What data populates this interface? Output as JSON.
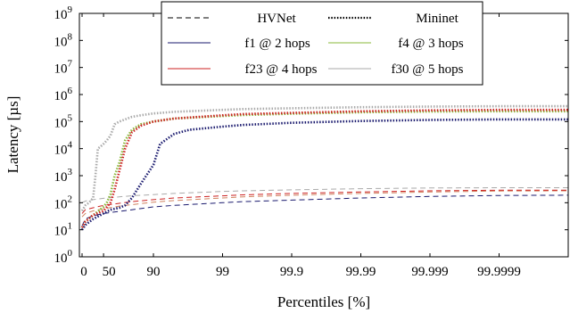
{
  "chart_data": {
    "type": "line",
    "xlabel": "Percentiles [%]",
    "ylabel": "Latency [µs]",
    "x_scale": "log-tail",
    "y_scale": "log",
    "xlim": [
      0,
      99.99999
    ],
    "ylim_exponents": [
      0,
      9
    ],
    "x_ticks": [
      {
        "value": 0,
        "label": "0"
      },
      {
        "value": 50,
        "label": "50"
      },
      {
        "value": 90,
        "label": "90"
      },
      {
        "value": 99,
        "label": "99"
      },
      {
        "value": 99.9,
        "label": "99.9"
      },
      {
        "value": 99.99,
        "label": "99.99"
      },
      {
        "value": 99.999,
        "label": "99.999"
      },
      {
        "value": 99.9999,
        "label": "99.9999"
      }
    ],
    "y_tick_base": "10",
    "y_tick_exponents": [
      "0",
      "1",
      "2",
      "3",
      "4",
      "5",
      "6",
      "7",
      "8",
      "9"
    ],
    "grid": false,
    "legend": {
      "placement": "top-right",
      "style_entries": [
        {
          "label": "HVNet",
          "dash": "dashed"
        },
        {
          "label": "Mininet",
          "dash": "dotted"
        }
      ]
    },
    "series": [
      {
        "name": "f1 @ 2 hops",
        "color": "#1a1a6e",
        "hvnet_color": "#1a1a6e",
        "hvnet": {
          "x": [
            0,
            10,
            30,
            50,
            70,
            80,
            90,
            95,
            99,
            99.5,
            99.9,
            99.99,
            99.999,
            99.9999,
            99.99999
          ],
          "y": [
            14,
            25,
            33,
            40,
            48,
            55,
            70,
            80,
            100,
            110,
            125,
            150,
            170,
            185,
            190
          ]
        },
        "mininet": {
          "x": [
            0,
            10,
            30,
            50,
            60,
            70,
            75,
            80,
            85,
            90,
            92,
            95,
            97,
            99,
            99.5,
            99.9,
            99.99,
            99.999,
            99.9999,
            99.99999
          ],
          "y": [
            10,
            15,
            25,
            40,
            55,
            65,
            80,
            150,
            500,
            2500,
            15000,
            35000,
            50000,
            65000,
            75000,
            90000,
            105000,
            115000,
            120000,
            120000
          ]
        }
      },
      {
        "name": "f4 @ 3 hops",
        "color": "#8ab83a",
        "hvnet_color": "#d0825e",
        "hvnet": {
          "x": [
            0,
            10,
            30,
            50,
            70,
            80,
            90,
            95,
            99,
            99.5,
            99.9,
            99.99,
            99.999,
            99.9999,
            99.99999
          ],
          "y": [
            30,
            40,
            50,
            60,
            75,
            85,
            105,
            120,
            150,
            165,
            190,
            220,
            250,
            270,
            275
          ]
        },
        "mininet": {
          "x": [
            0,
            10,
            30,
            50,
            55,
            60,
            65,
            70,
            75,
            80,
            85,
            90,
            95,
            99,
            99.5,
            99.9,
            99.99,
            99.999,
            99.9999,
            99.99999
          ],
          "y": [
            12,
            20,
            35,
            70,
            100,
            200,
            1000,
            3000,
            20000,
            50000,
            80000,
            100000,
            130000,
            160000,
            175000,
            195000,
            220000,
            235000,
            240000,
            240000
          ]
        }
      },
      {
        "name": "f23 @ 4 hops",
        "color": "#cc2222",
        "hvnet_color": "#cc2222",
        "hvnet": {
          "x": [
            0,
            10,
            30,
            50,
            70,
            80,
            90,
            95,
            99,
            99.5,
            99.9,
            99.99,
            99.999,
            99.9999,
            99.99999
          ],
          "y": [
            40,
            55,
            65,
            80,
            95,
            110,
            130,
            150,
            180,
            195,
            220,
            250,
            275,
            290,
            290
          ]
        },
        "mininet": {
          "x": [
            0,
            10,
            30,
            50,
            60,
            65,
            70,
            75,
            80,
            85,
            90,
            95,
            99,
            99.5,
            99.9,
            99.99,
            99.999,
            99.9999,
            99.99999
          ],
          "y": [
            12,
            20,
            35,
            50,
            100,
            300,
            1500,
            10000,
            40000,
            70000,
            100000,
            130000,
            170000,
            190000,
            210000,
            240000,
            260000,
            270000,
            270000
          ]
        }
      },
      {
        "name": "f30 @ 5 hops",
        "color": "#aaaaaa",
        "hvnet_color": "#aaaaaa",
        "hvnet": {
          "x": [
            0,
            10,
            30,
            50,
            70,
            80,
            90,
            95,
            99,
            99.5,
            99.9,
            99.99,
            99.999,
            99.9999,
            99.99999
          ],
          "y": [
            100,
            115,
            130,
            145,
            165,
            180,
            200,
            220,
            260,
            275,
            300,
            330,
            350,
            360,
            360
          ]
        },
        "mininet": {
          "x": [
            0,
            10,
            20,
            30,
            35,
            40,
            45,
            50,
            55,
            60,
            65,
            70,
            75,
            80,
            85,
            90,
            95,
            99,
            99.5,
            99.9,
            99.99,
            99.999,
            99.9999,
            99.99999
          ],
          "y": [
            50,
            80,
            100,
            150,
            1000,
            10000,
            12000,
            15000,
            20000,
            30000,
            80000,
            100000,
            120000,
            150000,
            170000,
            200000,
            230000,
            270000,
            290000,
            310000,
            340000,
            360000,
            370000,
            370000
          ]
        }
      }
    ]
  }
}
